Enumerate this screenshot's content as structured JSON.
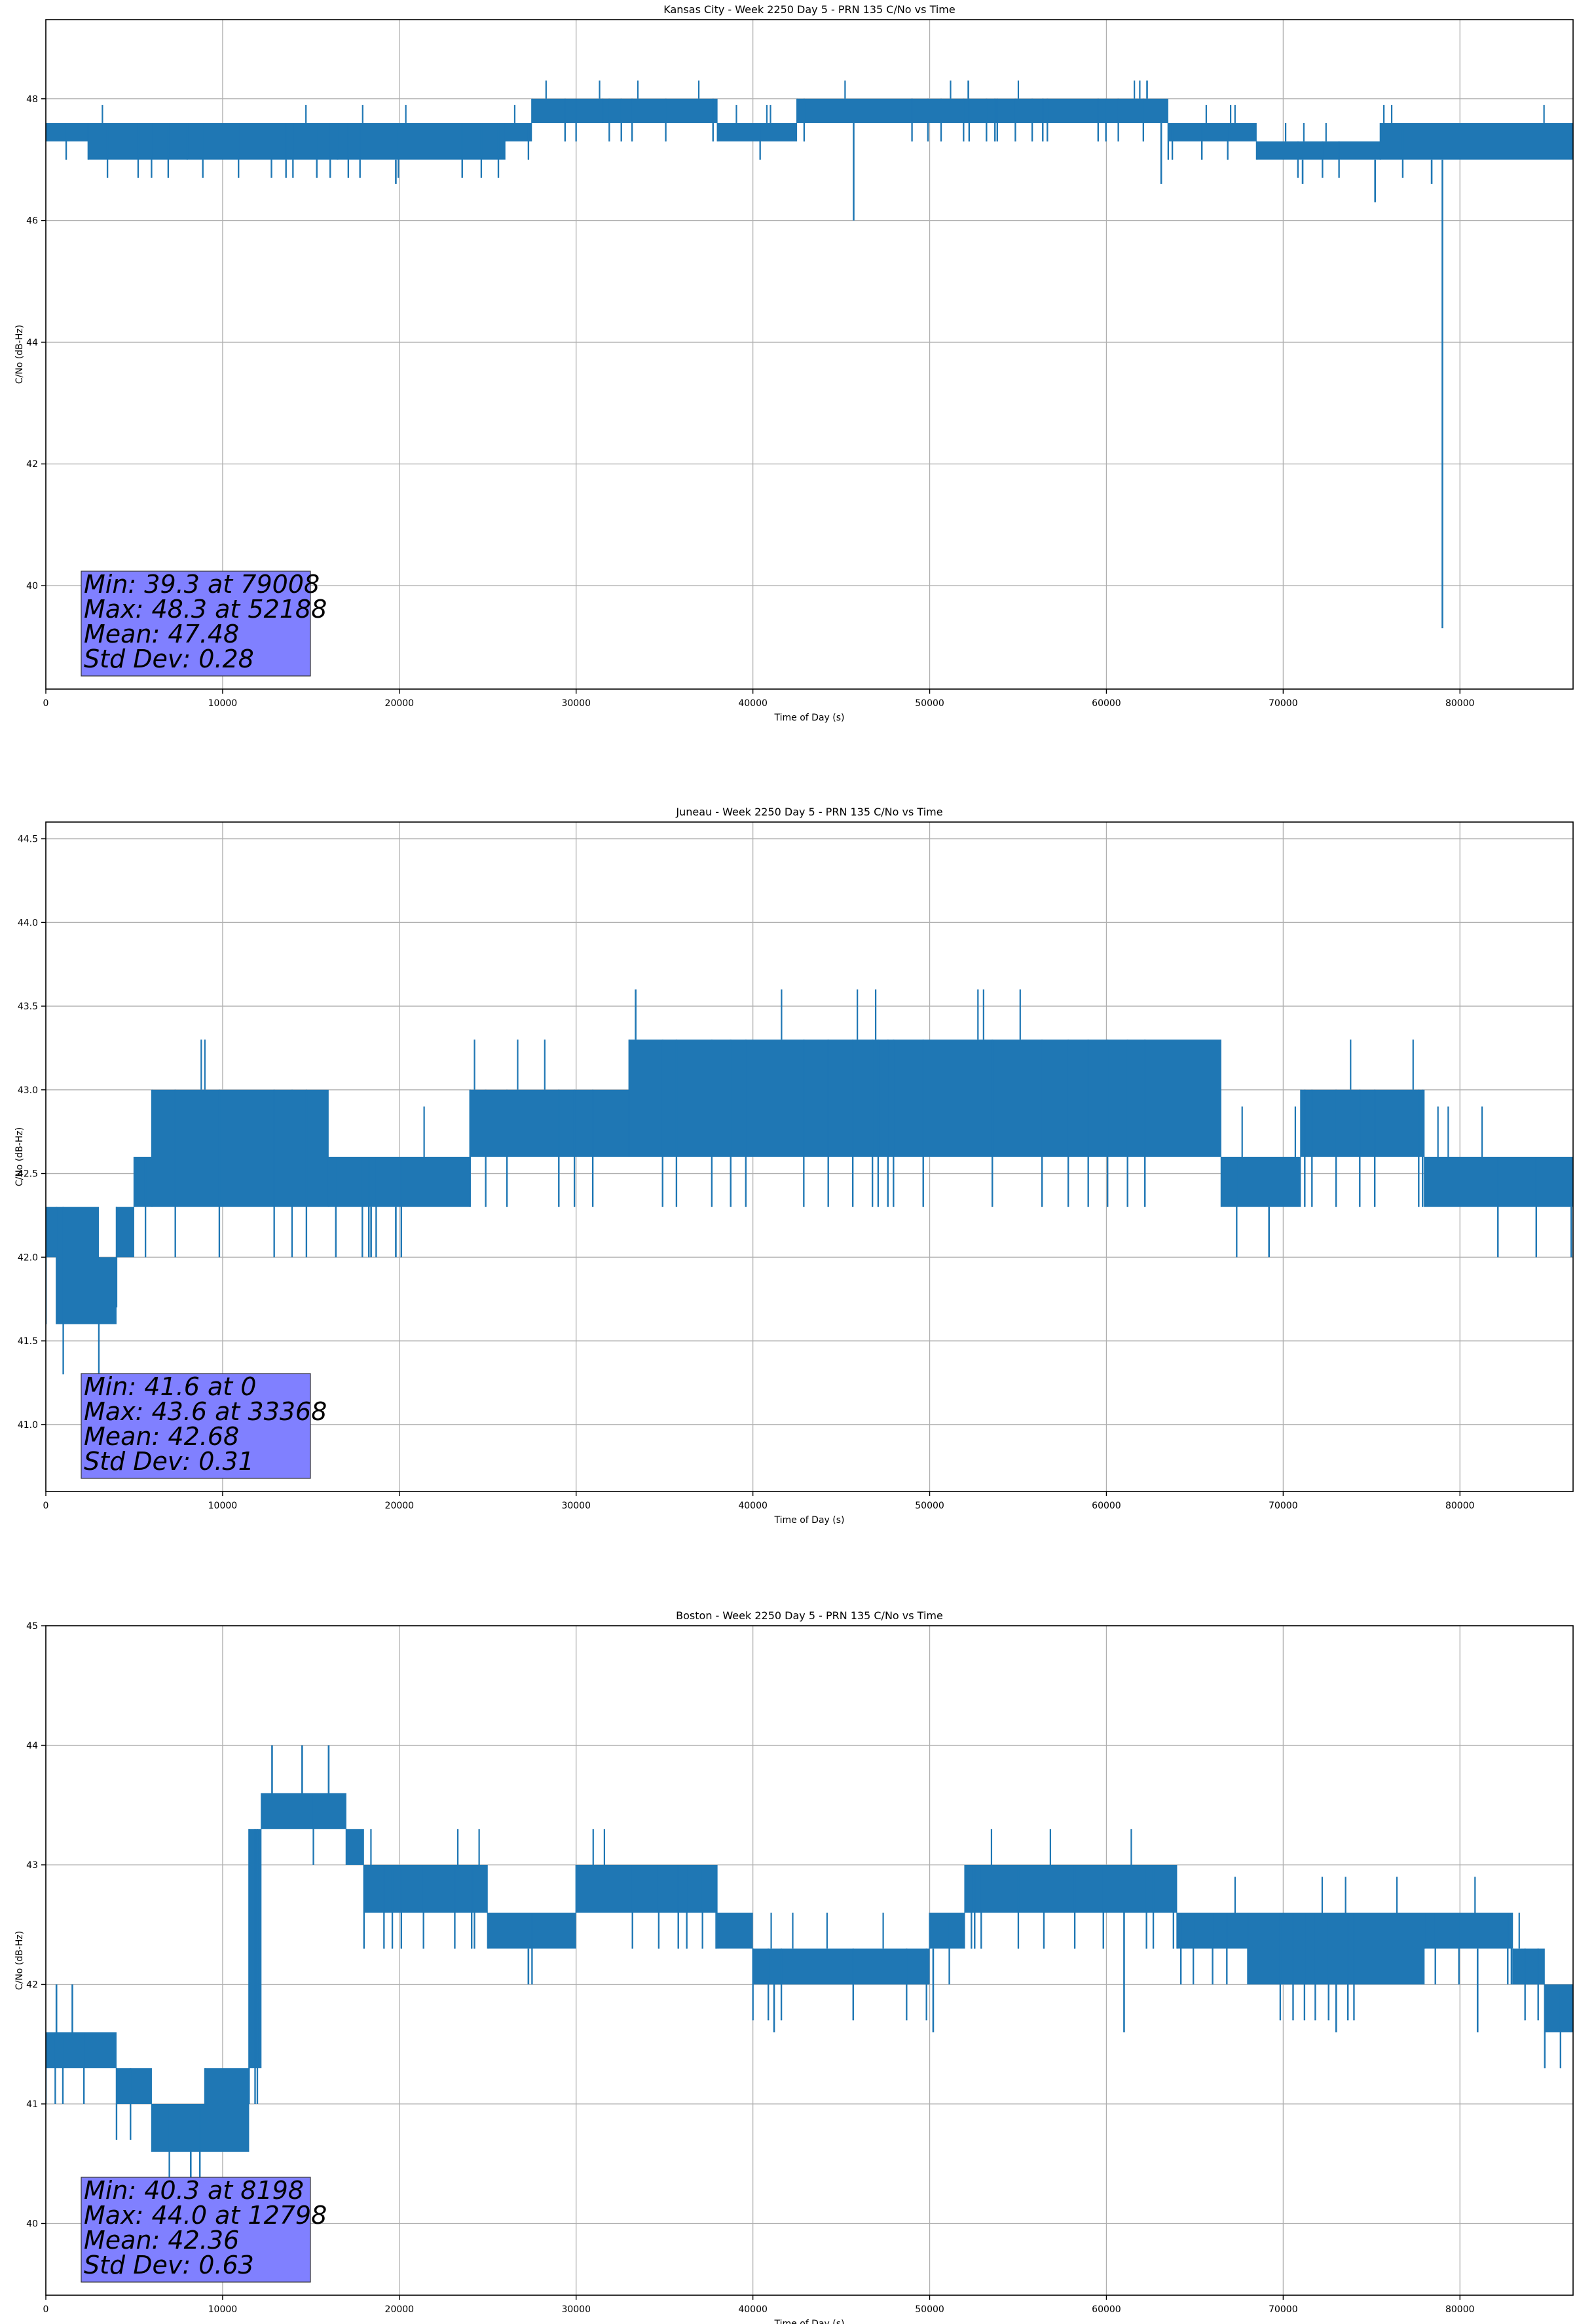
{
  "chart_data": [
    {
      "type": "line",
      "title": "Kansas City - Week 2250 Day 5 - PRN 135 C/No vs Time",
      "xlabel": "Time of Day (s)",
      "ylabel": "C/No (dB-Hz)",
      "xlim": [
        0,
        86400
      ],
      "ylim": [
        38.3,
        49.3
      ],
      "x_ticks": [
        0,
        10000,
        20000,
        30000,
        40000,
        50000,
        60000,
        70000,
        80000
      ],
      "y_ticks": [
        40,
        42,
        44,
        46,
        48
      ],
      "grid": true,
      "series_color": "#1f77b4",
      "segments": [
        {
          "x": [
            0,
            2400
          ],
          "lo": 47.3,
          "hi": 47.6
        },
        {
          "x": [
            2400,
            8000
          ],
          "lo": 47.0,
          "hi": 47.6
        },
        {
          "x": [
            8000,
            16500
          ],
          "lo": 47.0,
          "hi": 47.6
        },
        {
          "x": [
            16500,
            26000
          ],
          "lo": 47.0,
          "hi": 47.6
        },
        {
          "x": [
            26000,
            27500
          ],
          "lo": 47.3,
          "hi": 47.6
        },
        {
          "x": [
            27500,
            31500
          ],
          "lo": 47.6,
          "hi": 48.0
        },
        {
          "x": [
            31500,
            38000
          ],
          "lo": 47.6,
          "hi": 48.0
        },
        {
          "x": [
            38000,
            42500
          ],
          "lo": 47.3,
          "hi": 47.6
        },
        {
          "x": [
            42500,
            49000
          ],
          "lo": 47.6,
          "hi": 48.0
        },
        {
          "x": [
            49000,
            60000
          ],
          "lo": 47.6,
          "hi": 48.0
        },
        {
          "x": [
            60000,
            63500
          ],
          "lo": 47.6,
          "hi": 48.0
        },
        {
          "x": [
            63500,
            68500
          ],
          "lo": 47.3,
          "hi": 47.6
        },
        {
          "x": [
            68500,
            75500
          ],
          "lo": 47.0,
          "hi": 47.3
        },
        {
          "x": [
            75500,
            86400
          ],
          "lo": 47.0,
          "hi": 47.6
        }
      ],
      "spikes": [
        {
          "x": 19800,
          "y": 46.6
        },
        {
          "x": 45700,
          "y": 46.0
        },
        {
          "x": 52188,
          "y": 48.3
        },
        {
          "x": 62300,
          "y": 48.3
        },
        {
          "x": 63100,
          "y": 46.6
        },
        {
          "x": 71100,
          "y": 46.6
        },
        {
          "x": 75200,
          "y": 46.3
        },
        {
          "x": 78400,
          "y": 46.6
        },
        {
          "x": 79008,
          "y": 39.3
        }
      ],
      "stats": {
        "line1": "Min: 39.3 at 79008",
        "line2": "Max: 48.3 at 52188",
        "line3": "Mean: 47.48",
        "line4": "Std Dev: 0.28"
      }
    },
    {
      "type": "line",
      "title": "Juneau - Week 2250 Day 5 - PRN 135 C/No vs Time",
      "xlabel": "Time of Day (s)",
      "ylabel": "C/No (dB-Hz)",
      "xlim": [
        0,
        86400
      ],
      "ylim": [
        40.6,
        44.6
      ],
      "x_ticks": [
        0,
        10000,
        20000,
        30000,
        40000,
        50000,
        60000,
        70000,
        80000
      ],
      "y_ticks": [
        41.0,
        41.5,
        42.0,
        42.5,
        43.0,
        43.5,
        44.0,
        44.5
      ],
      "grid": true,
      "series_color": "#1f77b4",
      "segments": [
        {
          "x": [
            0,
            600
          ],
          "lo": 42.0,
          "hi": 42.3
        },
        {
          "x": [
            600,
            3000
          ],
          "lo": 41.6,
          "hi": 42.3
        },
        {
          "x": [
            3000,
            4000
          ],
          "lo": 41.6,
          "hi": 42.0
        },
        {
          "x": [
            4000,
            5000
          ],
          "lo": 42.0,
          "hi": 42.3
        },
        {
          "x": [
            5000,
            6000
          ],
          "lo": 42.3,
          "hi": 42.6
        },
        {
          "x": [
            6000,
            16000
          ],
          "lo": 42.3,
          "hi": 43.0
        },
        {
          "x": [
            16000,
            24000
          ],
          "lo": 42.3,
          "hi": 42.6
        },
        {
          "x": [
            24000,
            33000
          ],
          "lo": 42.6,
          "hi": 43.0
        },
        {
          "x": [
            33000,
            66500
          ],
          "lo": 42.6,
          "hi": 43.3
        },
        {
          "x": [
            66500,
            71000
          ],
          "lo": 42.3,
          "hi": 42.6
        },
        {
          "x": [
            71000,
            78000
          ],
          "lo": 42.6,
          "hi": 43.0
        },
        {
          "x": [
            78000,
            86400
          ],
          "lo": 42.3,
          "hi": 42.6
        }
      ],
      "spikes": [
        {
          "x": 0,
          "y": 41.6
        },
        {
          "x": 4000,
          "y": 41.6
        },
        {
          "x": 18400,
          "y": 42.0
        },
        {
          "x": 19800,
          "y": 42.0
        },
        {
          "x": 33368,
          "y": 43.6
        },
        {
          "x": 69200,
          "y": 42.0
        },
        {
          "x": 86300,
          "y": 42.0
        }
      ],
      "stats": {
        "line1": "Min: 41.6 at 0",
        "line2": "Max: 43.6 at 33368",
        "line3": "Mean: 42.68",
        "line4": "Std Dev: 0.31"
      }
    },
    {
      "type": "line",
      "title": "Boston - Week 2250 Day 5 - PRN 135 C/No vs Time",
      "xlabel": "Time of Day (s)",
      "ylabel": "C/No (dB-Hz)",
      "xlim": [
        0,
        86400
      ],
      "ylim": [
        39.4,
        45.0
      ],
      "x_ticks": [
        0,
        10000,
        20000,
        30000,
        40000,
        50000,
        60000,
        70000,
        80000
      ],
      "y_ticks": [
        40,
        41,
        42,
        43,
        44,
        45
      ],
      "grid": true,
      "series_color": "#1f77b4",
      "segments": [
        {
          "x": [
            0,
            4000
          ],
          "lo": 41.3,
          "hi": 41.6
        },
        {
          "x": [
            4000,
            6000
          ],
          "lo": 41.0,
          "hi": 41.3
        },
        {
          "x": [
            6000,
            9000
          ],
          "lo": 40.6,
          "hi": 41.0
        },
        {
          "x": [
            9000,
            11500
          ],
          "lo": 40.6,
          "hi": 41.3
        },
        {
          "x": [
            11500,
            12200
          ],
          "lo": 41.3,
          "hi": 43.3
        },
        {
          "x": [
            12200,
            17000
          ],
          "lo": 43.3,
          "hi": 43.6
        },
        {
          "x": [
            17000,
            18000
          ],
          "lo": 43.0,
          "hi": 43.3
        },
        {
          "x": [
            18000,
            25000
          ],
          "lo": 42.6,
          "hi": 43.0
        },
        {
          "x": [
            25000,
            30000
          ],
          "lo": 42.3,
          "hi": 42.6
        },
        {
          "x": [
            30000,
            38000
          ],
          "lo": 42.6,
          "hi": 43.0
        },
        {
          "x": [
            38000,
            40000
          ],
          "lo": 42.3,
          "hi": 42.6
        },
        {
          "x": [
            40000,
            50000
          ],
          "lo": 42.0,
          "hi": 42.3
        },
        {
          "x": [
            50000,
            52000
          ],
          "lo": 42.3,
          "hi": 42.6
        },
        {
          "x": [
            52000,
            64000
          ],
          "lo": 42.6,
          "hi": 43.0
        },
        {
          "x": [
            64000,
            68000
          ],
          "lo": 42.3,
          "hi": 42.6
        },
        {
          "x": [
            68000,
            78000
          ],
          "lo": 42.0,
          "hi": 42.6
        },
        {
          "x": [
            78000,
            83000
          ],
          "lo": 42.3,
          "hi": 42.6
        },
        {
          "x": [
            83000,
            84800
          ],
          "lo": 42.0,
          "hi": 42.3
        },
        {
          "x": [
            84800,
            86400
          ],
          "lo": 41.6,
          "hi": 42.0
        }
      ],
      "spikes": [
        {
          "x": 600,
          "y": 42.0
        },
        {
          "x": 1500,
          "y": 42.0
        },
        {
          "x": 8198,
          "y": 40.3
        },
        {
          "x": 12798,
          "y": 44.0
        },
        {
          "x": 14500,
          "y": 44.0
        },
        {
          "x": 16000,
          "y": 44.0
        },
        {
          "x": 27300,
          "y": 42.0
        },
        {
          "x": 41200,
          "y": 41.6
        },
        {
          "x": 50200,
          "y": 41.6
        },
        {
          "x": 61000,
          "y": 41.6
        },
        {
          "x": 73000,
          "y": 41.6
        },
        {
          "x": 81000,
          "y": 41.6
        }
      ],
      "stats": {
        "line1": "Min: 40.3 at 8198",
        "line2": "Max: 44.0 at 12798",
        "line3": "Mean: 42.36",
        "line4": "Std Dev: 0.63"
      }
    }
  ]
}
